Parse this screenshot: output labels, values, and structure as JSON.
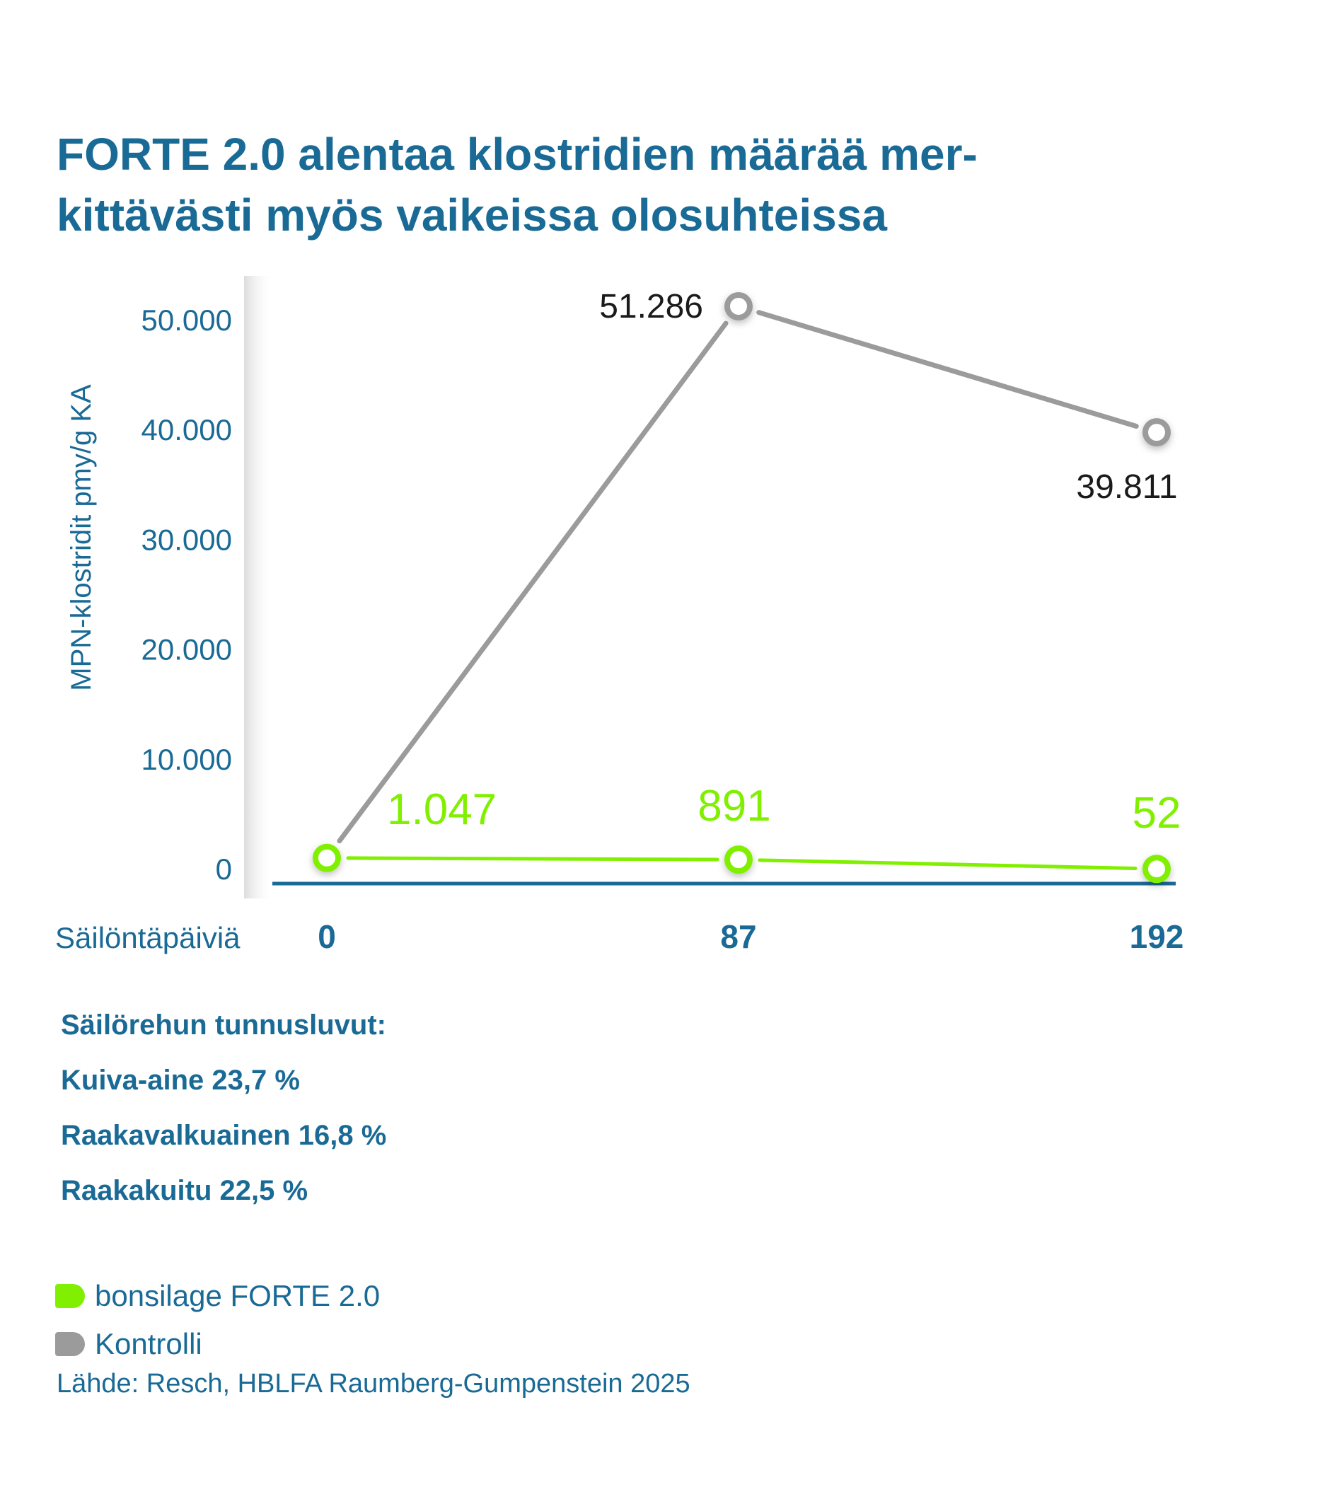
{
  "title": {
    "line1": "FORTE 2.0 alentaa klostridien määrää mer-",
    "line2": "kittävästi myös vaikeissa olosuhteissa"
  },
  "chart_data": {
    "type": "line",
    "ylabel": "MPN-klostridit pmy/g KA",
    "xlabel": "Säilöntäpäiviä",
    "categories": [
      "0",
      "87",
      "192"
    ],
    "yticks": [
      "0",
      "10.000",
      "20.000",
      "30.000",
      "40.000",
      "50.000"
    ],
    "ylim": [
      0,
      50000
    ],
    "grid": false,
    "series": [
      {
        "name": "Kontrolli",
        "color": "#9b9b9b",
        "values": [
          1047,
          51286,
          39811
        ],
        "labels": [
          "",
          "51.286",
          "39.811"
        ]
      },
      {
        "name": "bonsilage FORTE 2.0",
        "color": "#80f000",
        "values": [
          1047,
          891,
          52
        ],
        "labels": [
          "1.047",
          "891",
          "52"
        ]
      }
    ]
  },
  "stats": {
    "heading": "Säilörehun tunnusluvut:",
    "items": [
      "Kuiva-aine 23,7 %",
      "Raakavalkuainen 16,8 %",
      "Raakakuitu 22,5 %"
    ]
  },
  "legend": {
    "items": [
      {
        "label": "bonsilage FORTE 2.0",
        "color": "#80f000"
      },
      {
        "label": "Kontrolli",
        "color": "#9b9b9b"
      }
    ]
  },
  "source": "Lähde: Resch, HBLFA Raumberg-Gumpenstein 2025"
}
